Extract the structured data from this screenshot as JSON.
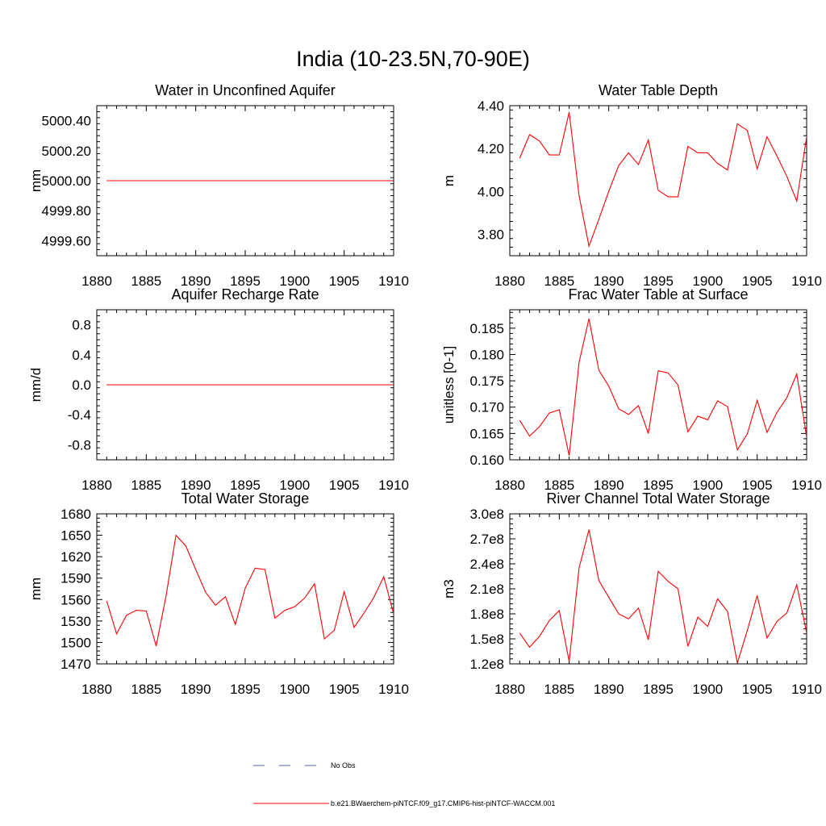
{
  "figure": {
    "title": "India (10-23.5N,70-90E)",
    "colors": {
      "model": "#ff0000",
      "obs": "#5566aa",
      "axis": "#000000"
    }
  },
  "legend": {
    "obs_label": "No Obs",
    "model_label": "b.e21.BWaerchem-piNTCF.f09_g17.CMIP6-hist-piNTCF-WACCM.001"
  },
  "chart_data": [
    {
      "type": "line",
      "title": "Water in Unconfined Aquifer",
      "ylabel": "mm",
      "xlim": [
        1880,
        1910
      ],
      "ylim": [
        4999.5,
        5000.5
      ],
      "xticks": [
        1880,
        1885,
        1890,
        1895,
        1900,
        1905,
        1910
      ],
      "yticks": [
        4999.6,
        4999.8,
        5000.0,
        5000.2,
        5000.4
      ],
      "ytick_labels": [
        "4999.60",
        "4999.80",
        "5000.00",
        "5000.20",
        "5000.40"
      ],
      "x": [
        1881,
        1910
      ],
      "series": [
        {
          "values": [
            5000.0,
            5000.0
          ]
        }
      ]
    },
    {
      "type": "line",
      "title": "Water Table Depth",
      "ylabel": "m",
      "xlim": [
        1880,
        1910
      ],
      "ylim": [
        3.7,
        4.4
      ],
      "xticks": [
        1880,
        1885,
        1890,
        1895,
        1900,
        1905,
        1910
      ],
      "yticks": [
        3.8,
        4.0,
        4.2,
        4.4
      ],
      "ytick_labels": [
        "3.80",
        "4.00",
        "4.20",
        "4.40"
      ],
      "x": [
        1881,
        1882,
        1883,
        1884,
        1885,
        1886,
        1887,
        1888,
        1889,
        1890,
        1891,
        1892,
        1893,
        1894,
        1895,
        1896,
        1897,
        1898,
        1899,
        1900,
        1901,
        1902,
        1903,
        1904,
        1905,
        1906,
        1907,
        1908,
        1909,
        1910
      ],
      "series": [
        {
          "values": [
            4.155,
            4.265,
            4.235,
            4.17,
            4.17,
            4.37,
            3.98,
            3.745,
            3.87,
            4.0,
            4.12,
            4.18,
            4.125,
            4.24,
            4.005,
            3.975,
            3.975,
            4.21,
            4.18,
            4.18,
            4.13,
            4.1,
            4.315,
            4.285,
            4.105,
            4.255,
            4.165,
            4.07,
            3.955,
            4.255
          ]
        }
      ]
    },
    {
      "type": "line",
      "title": "Aquifer Recharge Rate",
      "ylabel": "mm/d",
      "xlim": [
        1880,
        1910
      ],
      "ylim": [
        -1.0,
        1.0
      ],
      "xticks": [
        1880,
        1885,
        1890,
        1895,
        1900,
        1905,
        1910
      ],
      "yticks": [
        -0.8,
        -0.4,
        0.0,
        0.4,
        0.8
      ],
      "ytick_labels": [
        "-0.8",
        "-0.4",
        "0.0",
        "0.4",
        "0.8"
      ],
      "x": [
        1881,
        1910
      ],
      "series": [
        {
          "values": [
            0.0,
            0.0
          ]
        }
      ]
    },
    {
      "type": "line",
      "title": "Frac Water Table at Surface",
      "ylabel": "unitless [0-1]",
      "xlim": [
        1880,
        1910
      ],
      "ylim": [
        0.16,
        0.1885
      ],
      "xticks": [
        1880,
        1885,
        1890,
        1895,
        1900,
        1905,
        1910
      ],
      "yticks": [
        0.16,
        0.165,
        0.17,
        0.175,
        0.18,
        0.185
      ],
      "ytick_labels": [
        "0.160",
        "0.165",
        "0.170",
        "0.175",
        "0.180",
        "0.185"
      ],
      "x": [
        1881,
        1882,
        1883,
        1884,
        1885,
        1886,
        1887,
        1888,
        1889,
        1890,
        1891,
        1892,
        1893,
        1894,
        1895,
        1896,
        1897,
        1898,
        1899,
        1900,
        1901,
        1902,
        1903,
        1904,
        1905,
        1906,
        1907,
        1908,
        1909,
        1910
      ],
      "series": [
        {
          "values": [
            0.1675,
            0.1645,
            0.1663,
            0.1689,
            0.1695,
            0.1608,
            0.1785,
            0.1868,
            0.177,
            0.174,
            0.1697,
            0.1686,
            0.1703,
            0.165,
            0.1769,
            0.1765,
            0.1742,
            0.1653,
            0.1683,
            0.1676,
            0.1712,
            0.1701,
            0.1619,
            0.1649,
            0.1713,
            0.1652,
            0.169,
            0.1718,
            0.1763,
            0.1643
          ]
        }
      ]
    },
    {
      "type": "line",
      "title": "Total Water Storage",
      "ylabel": "mm",
      "xlim": [
        1880,
        1910
      ],
      "ylim": [
        1470,
        1680
      ],
      "xticks": [
        1880,
        1885,
        1890,
        1895,
        1900,
        1905,
        1910
      ],
      "yticks": [
        1470,
        1500,
        1530,
        1560,
        1590,
        1620,
        1650,
        1680
      ],
      "ytick_labels": [
        "1470",
        "1500",
        "1530",
        "1560",
        "1590",
        "1620",
        "1650",
        "1680"
      ],
      "x": [
        1881,
        1882,
        1883,
        1884,
        1885,
        1886,
        1887,
        1888,
        1889,
        1890,
        1891,
        1892,
        1893,
        1894,
        1895,
        1896,
        1897,
        1898,
        1899,
        1900,
        1901,
        1902,
        1903,
        1904,
        1905,
        1906,
        1907,
        1908,
        1909,
        1910
      ],
      "series": [
        {
          "values": [
            1558,
            1512,
            1538,
            1545,
            1544,
            1495,
            1565,
            1650,
            1635,
            1602,
            1570,
            1552,
            1564,
            1525,
            1576,
            1604,
            1602,
            1534,
            1545,
            1550,
            1562,
            1582,
            1505,
            1517,
            1571,
            1521,
            1541,
            1563,
            1592,
            1540
          ]
        }
      ]
    },
    {
      "type": "line",
      "title": "River Channel Total Water Storage",
      "ylabel": "m3",
      "xlim": [
        1880,
        1910
      ],
      "ylim": [
        120000000,
        300000000
      ],
      "xticks": [
        1880,
        1885,
        1890,
        1895,
        1900,
        1905,
        1910
      ],
      "yticks": [
        120000000,
        150000000,
        180000000,
        210000000,
        240000000,
        270000000,
        300000000
      ],
      "ytick_labels": [
        "1.2e8",
        "1.5e8",
        "1.8e8",
        "2.1e8",
        "2.4e8",
        "2.7e8",
        "3.0e8"
      ],
      "x": [
        1881,
        1882,
        1883,
        1884,
        1885,
        1886,
        1887,
        1888,
        1889,
        1890,
        1891,
        1892,
        1893,
        1894,
        1895,
        1896,
        1897,
        1898,
        1899,
        1900,
        1901,
        1902,
        1903,
        1904,
        1905,
        1906,
        1907,
        1908,
        1909,
        1910
      ],
      "series": [
        {
          "values": [
            157000000,
            140000000,
            153000000,
            172000000,
            184000000,
            123000000,
            235000000,
            281000000,
            220000000,
            200000000,
            180000000,
            174000000,
            187000000,
            149000000,
            231000000,
            219000000,
            210000000,
            141000000,
            176000000,
            165000000,
            198000000,
            183000000,
            121000000,
            160000000,
            202000000,
            151000000,
            171000000,
            181000000,
            215000000,
            157000000
          ]
        }
      ]
    }
  ]
}
